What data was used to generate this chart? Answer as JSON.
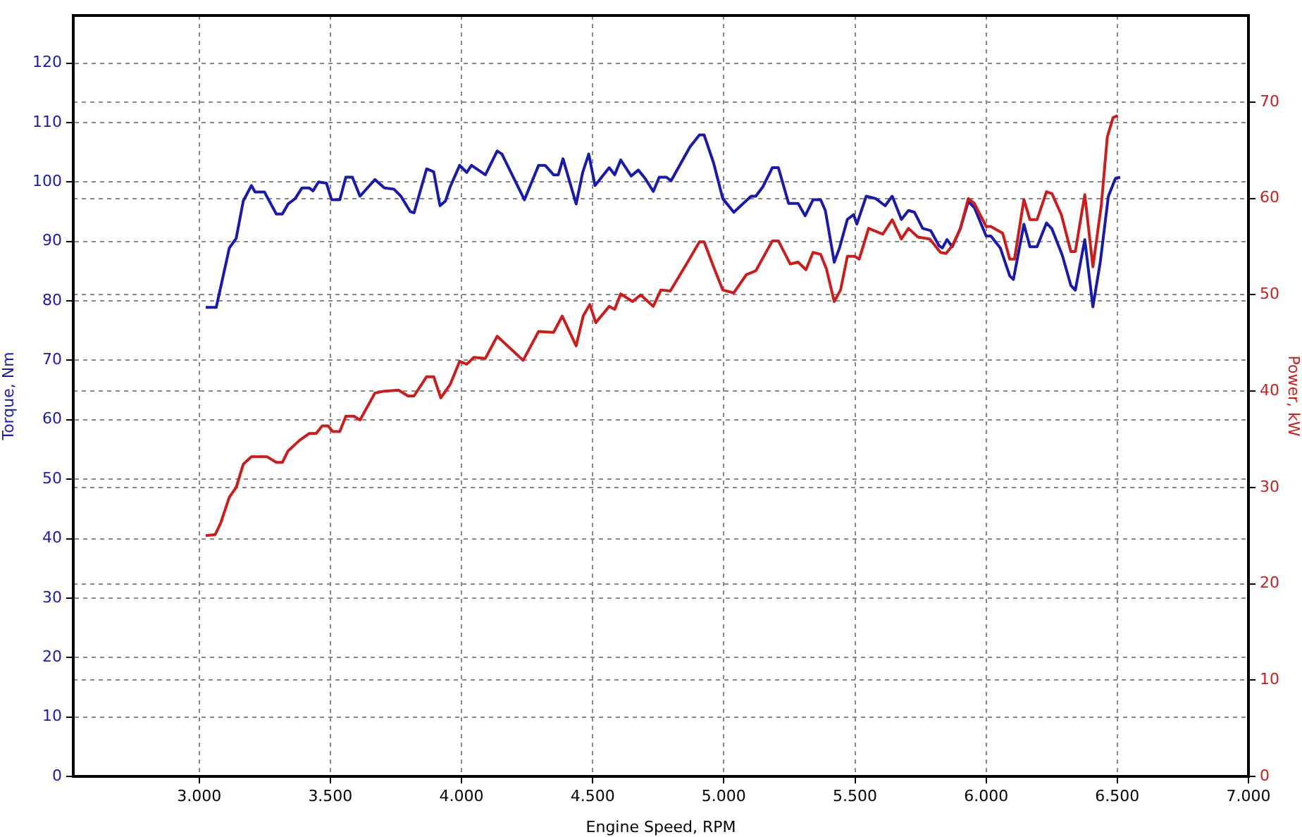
{
  "chart_data": {
    "type": "line",
    "xlabel": "Engine Speed, RPM",
    "ylabel": "Torque, Nm",
    "y2label": "Power, kW",
    "xlim": [
      2520,
      7000
    ],
    "xticks": [
      {
        "value": 3000,
        "label": "3.000"
      },
      {
        "value": 3500,
        "label": "3.500"
      },
      {
        "value": 4000,
        "label": "4.000"
      },
      {
        "value": 4500,
        "label": "4.500"
      },
      {
        "value": 5000,
        "label": "5.000"
      },
      {
        "value": 5500,
        "label": "5.500"
      },
      {
        "value": 6000,
        "label": "6.000"
      },
      {
        "value": 6500,
        "label": "6.500"
      },
      {
        "value": 7000,
        "label": "7.000"
      }
    ],
    "ylim": [
      0,
      128
    ],
    "yticks": [
      0,
      10,
      20,
      30,
      40,
      50,
      60,
      70,
      80,
      90,
      100,
      110,
      120
    ],
    "y2lim": [
      0,
      79
    ],
    "y2ticks": [
      0,
      10,
      20,
      30,
      40,
      50,
      60,
      70
    ],
    "grid": true,
    "legend": false,
    "marker": "none",
    "line_style": "solid",
    "series": [
      {
        "color": "#1a1aa8",
        "x": [
          3025,
          3065,
          3115,
          3141,
          3168,
          3199,
          3213,
          3249,
          3294,
          3317,
          3339,
          3366,
          3392,
          3419,
          3434,
          3455,
          3485,
          3505,
          3536,
          3559,
          3584,
          3613,
          3670,
          3706,
          3742,
          3769,
          3805,
          3819,
          3867,
          3894,
          3918,
          3939,
          3957,
          3993,
          4020,
          4038,
          4091,
          4136,
          4154,
          4240,
          4294,
          4319,
          4351,
          4369,
          4387,
          4437,
          4462,
          4485,
          4509,
          4563,
          4584,
          4607,
          4647,
          4674,
          4700,
          4731,
          4754,
          4781,
          4799,
          4871,
          4907,
          4925,
          4961,
          4996,
          5038,
          5104,
          5122,
          5149,
          5185,
          5208,
          5247,
          5283,
          5310,
          5340,
          5369,
          5387,
          5421,
          5441,
          5471,
          5495,
          5507,
          5543,
          5579,
          5615,
          5642,
          5677,
          5704,
          5727,
          5758,
          5789,
          5820,
          5833,
          5851,
          5871,
          5901,
          5932,
          5955,
          6000,
          6018,
          6054,
          6090,
          6104,
          6144,
          6167,
          6194,
          6230,
          6251,
          6290,
          6323,
          6340,
          6376,
          6407,
          6435,
          6466,
          6493,
          6511
        ],
        "values": [
          78.9,
          78.9,
          88.9,
          90.5,
          96.8,
          99.4,
          98.3,
          98.3,
          94.6,
          94.6,
          96.3,
          97.2,
          99,
          99,
          98.5,
          100,
          99.8,
          97,
          97,
          100.8,
          100.8,
          97.6,
          100.4,
          99,
          98.8,
          97.6,
          95,
          94.8,
          102.2,
          101.7,
          96,
          96.8,
          99.2,
          102.8,
          101.6,
          102.8,
          101.2,
          105.2,
          104.7,
          97,
          102.8,
          102.8,
          101.2,
          101.2,
          103.9,
          96.3,
          101.6,
          104.7,
          99.4,
          102.4,
          101.2,
          103.7,
          101,
          102,
          100.6,
          98.4,
          100.8,
          100.8,
          100.2,
          105.9,
          107.9,
          107.9,
          103.2,
          97.2,
          94.9,
          97.6,
          97.6,
          99.2,
          102.4,
          102.4,
          96.4,
          96.4,
          94.3,
          97,
          97,
          95.2,
          86.5,
          88.9,
          93.7,
          94.5,
          92.9,
          97.6,
          97.2,
          96,
          97.6,
          93.7,
          95.2,
          94.9,
          92.2,
          91.8,
          89.3,
          88.9,
          90.3,
          89.1,
          92.1,
          96.7,
          95.7,
          90.9,
          90.9,
          88.9,
          84.2,
          83.6,
          92.9,
          89.1,
          89.1,
          93.1,
          92.1,
          87.7,
          82.6,
          81.8,
          90.3,
          79,
          86.5,
          97.6,
          100.6,
          100.8
        ]
      },
      {
        "color": "#c81e1e",
        "axis": "y2",
        "x": [
          3025,
          3061,
          3082,
          3115,
          3141,
          3168,
          3199,
          3258,
          3294,
          3317,
          3339,
          3383,
          3419,
          3446,
          3469,
          3491,
          3509,
          3536,
          3559,
          3590,
          3613,
          3670,
          3706,
          3760,
          3796,
          3819,
          3867,
          3894,
          3921,
          3957,
          3993,
          4020,
          4047,
          4091,
          4136,
          4235,
          4294,
          4351,
          4384,
          4437,
          4464,
          4489,
          4512,
          4563,
          4584,
          4607,
          4652,
          4683,
          4731,
          4760,
          4796,
          4862,
          4907,
          4925,
          4961,
          4996,
          5038,
          5086,
          5122,
          5185,
          5208,
          5253,
          5283,
          5313,
          5340,
          5369,
          5391,
          5421,
          5445,
          5471,
          5499,
          5516,
          5552,
          5606,
          5642,
          5677,
          5704,
          5740,
          5785,
          5826,
          5847,
          5871,
          5901,
          5932,
          5955,
          6000,
          6018,
          6063,
          6090,
          6108,
          6144,
          6167,
          6194,
          6230,
          6251,
          6287,
          6323,
          6340,
          6376,
          6407,
          6439,
          6462,
          6484,
          6502
        ],
        "values": [
          25.0,
          25.1,
          26.3,
          29.0,
          30.0,
          32.4,
          33.2,
          33.2,
          32.6,
          32.6,
          33.8,
          34.9,
          35.6,
          35.6,
          36.4,
          36.4,
          35.8,
          35.8,
          37.4,
          37.4,
          37.0,
          39.8,
          40.0,
          40.1,
          39.5,
          39.5,
          41.5,
          41.5,
          39.3,
          40.7,
          43.1,
          42.8,
          43.5,
          43.4,
          45.7,
          43.2,
          46.2,
          46.1,
          47.8,
          44.7,
          47.8,
          49.0,
          47.1,
          48.8,
          48.5,
          50.1,
          49.3,
          50.0,
          48.8,
          50.5,
          50.4,
          53.4,
          55.5,
          55.5,
          52.9,
          50.5,
          50.2,
          52.1,
          52.5,
          55.6,
          55.6,
          53.2,
          53.4,
          52.6,
          54.4,
          54.2,
          52.7,
          49.3,
          50.5,
          54.0,
          54.0,
          53.7,
          56.9,
          56.3,
          57.8,
          55.8,
          56.9,
          56.0,
          55.8,
          54.4,
          54.3,
          55.1,
          56.8,
          60.0,
          59.5,
          57.1,
          57.1,
          56.4,
          53.7,
          53.7,
          59.9,
          57.8,
          57.8,
          60.7,
          60.5,
          58.3,
          54.5,
          54.5,
          60.4,
          52.9,
          59.3,
          66.4,
          68.4,
          68.6
        ]
      }
    ]
  }
}
